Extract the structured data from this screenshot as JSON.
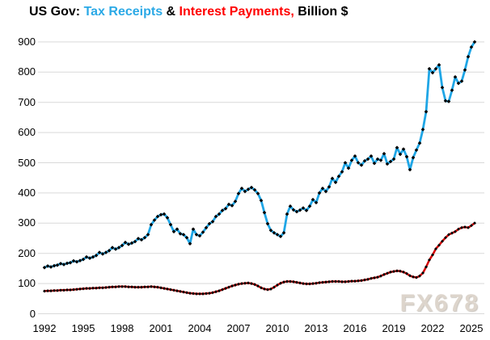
{
  "title": {
    "part1": "US Gov: ",
    "part2": "Tax Receipts",
    "part3": " & ",
    "part4": "Interest Payments,",
    "part5": " Billion $"
  },
  "watermark": "FX678",
  "colors": {
    "title_receipts": "#2BA9E6",
    "title_interest": "#FF0000",
    "receipts_line": "#1FA6E6",
    "interest_line": "#D60000",
    "marker": "#000000",
    "gridline": "#d9d9d9",
    "text": "#000000"
  },
  "chart_data": {
    "type": "line",
    "title": "US Gov: Tax Receipts & Interest Payments, Billion $",
    "xlabel": "",
    "ylabel": "Billion $",
    "ylim": [
      0,
      900
    ],
    "y_ticks": [
      0,
      100,
      200,
      300,
      400,
      500,
      600,
      700,
      800,
      900
    ],
    "x_tick_labels": [
      "1992",
      "1995",
      "1998",
      "2001",
      "2004",
      "2007",
      "2010",
      "2013",
      "2016",
      "2019",
      "2022",
      "2025"
    ],
    "x_start_year": 1992,
    "x_end_year": 2025.25,
    "points_per_year": 4,
    "grid": "horizontal-only",
    "legend_position": "none (colored title acts as legend)",
    "series": [
      {
        "name": "Tax Receipts",
        "frequency": "quarterly",
        "values": [
          153,
          158,
          155,
          159,
          161,
          166,
          163,
          167,
          169,
          175,
          172,
          176,
          180,
          188,
          184,
          188,
          193,
          203,
          198,
          203,
          209,
          219,
          214,
          219,
          226,
          236,
          230,
          234,
          239,
          249,
          245,
          252,
          262,
          295,
          310,
          322,
          328,
          330,
          318,
          295,
          272,
          280,
          265,
          262,
          252,
          232,
          280,
          262,
          258,
          270,
          285,
          298,
          305,
          322,
          330,
          342,
          348,
          362,
          358,
          372,
          398,
          415,
          405,
          412,
          418,
          410,
          398,
          375,
          335,
          298,
          276,
          268,
          262,
          256,
          268,
          330,
          356,
          344,
          338,
          343,
          350,
          342,
          356,
          378,
          368,
          400,
          415,
          405,
          420,
          448,
          435,
          455,
          470,
          500,
          482,
          508,
          522,
          500,
          492,
          506,
          512,
          522,
          498,
          512,
          508,
          530,
          496,
          504,
          512,
          550,
          528,
          545,
          520,
          477,
          517,
          542,
          565,
          610,
          669,
          811,
          798,
          811,
          824,
          749,
          705,
          703,
          740,
          784,
          763,
          770,
          807,
          851,
          883,
          900
        ]
      },
      {
        "name": "Interest Payments",
        "frequency": "quarterly",
        "values": [
          75,
          76,
          76,
          77,
          77,
          78,
          78,
          79,
          79,
          80,
          81,
          82,
          83,
          84,
          84,
          85,
          85,
          86,
          86,
          87,
          88,
          89,
          89,
          90,
          90,
          90,
          89,
          89,
          88,
          88,
          88,
          89,
          89,
          90,
          89,
          88,
          86,
          84,
          82,
          80,
          78,
          76,
          74,
          72,
          70,
          68,
          67,
          66,
          66,
          66,
          67,
          68,
          70,
          73,
          76,
          80,
          84,
          88,
          92,
          95,
          98,
          100,
          101,
          102,
          100,
          97,
          92,
          86,
          82,
          80,
          82,
          88,
          95,
          101,
          105,
          107,
          107,
          106,
          104,
          102,
          100,
          99,
          99,
          100,
          101,
          103,
          104,
          105,
          106,
          107,
          107,
          107,
          106,
          106,
          107,
          108,
          108,
          109,
          110,
          112,
          114,
          117,
          119,
          121,
          125,
          130,
          134,
          138,
          140,
          142,
          141,
          138,
          133,
          126,
          122,
          120,
          125,
          135,
          155,
          178,
          195,
          215,
          227,
          240,
          252,
          262,
          267,
          272,
          280,
          285,
          287,
          285,
          292,
          300
        ]
      }
    ]
  }
}
